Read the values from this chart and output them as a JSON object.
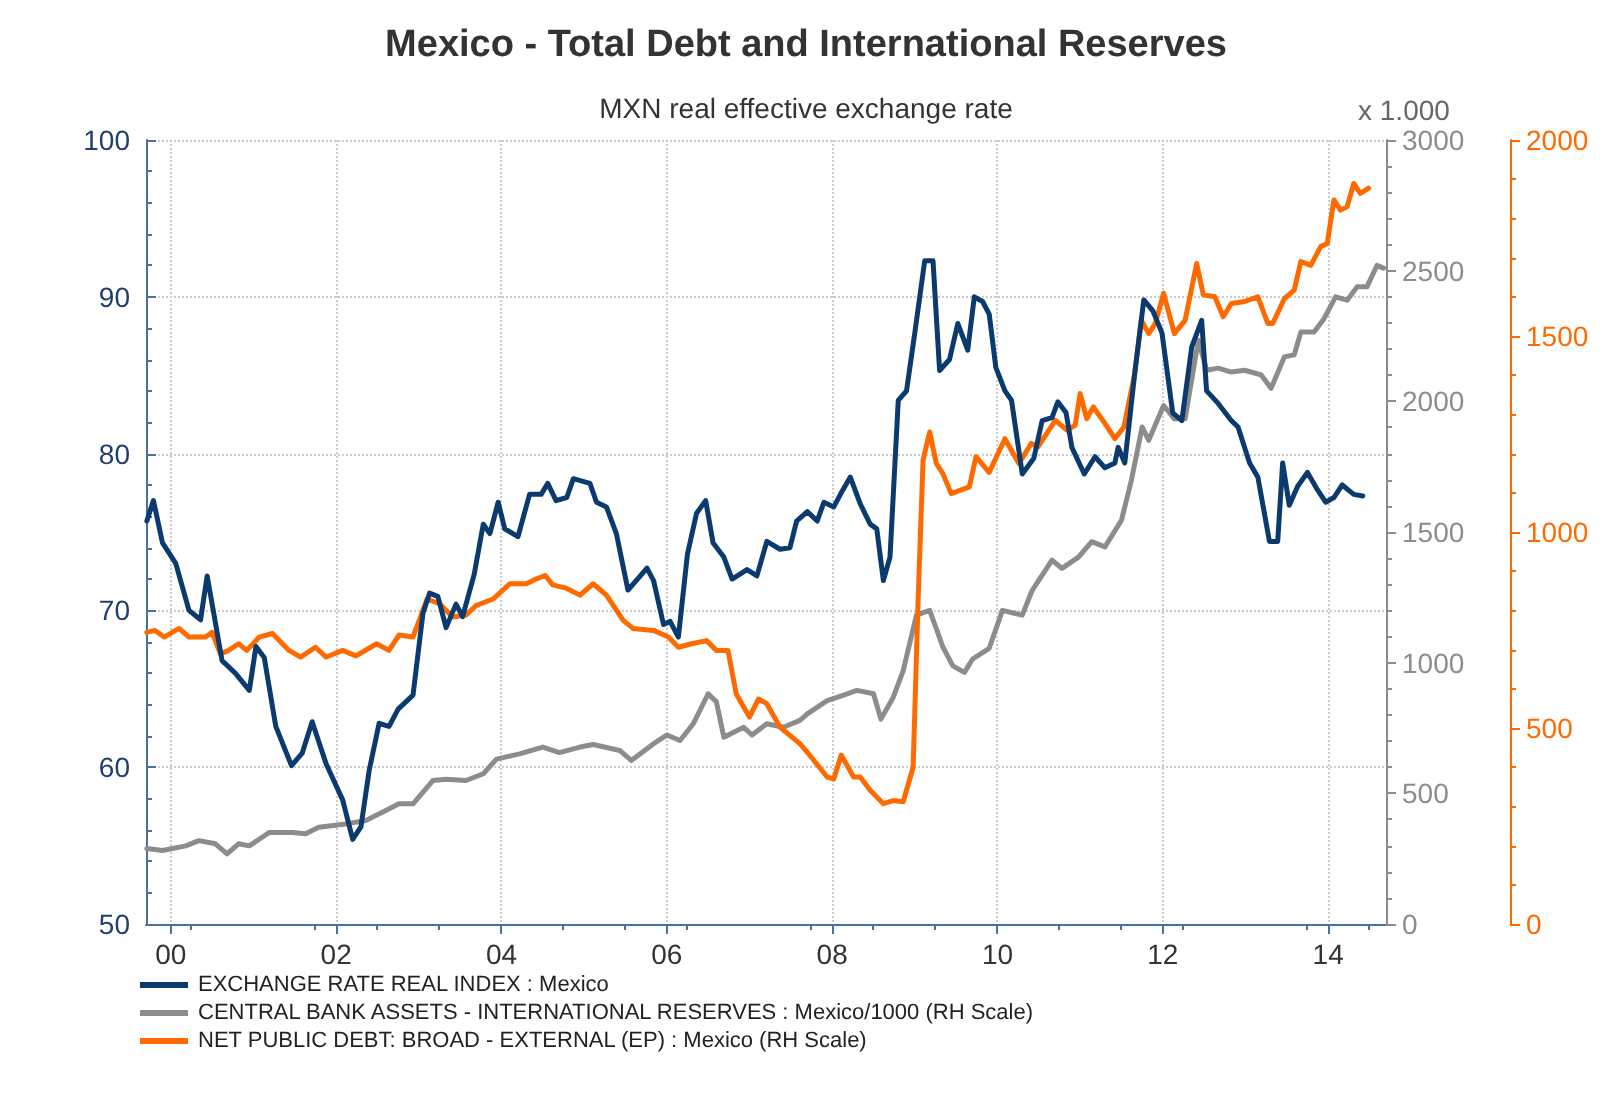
{
  "chart_data": {
    "type": "line",
    "title": "Mexico - Total Debt and International Reserves",
    "subtitle": "MXN real effective exchange rate",
    "y2label": "x 1.000",
    "xlim": [
      1999.7,
      2014.7
    ],
    "xticks": [
      {
        "value": 2000,
        "label": "00"
      },
      {
        "value": 2002,
        "label": "02"
      },
      {
        "value": 2004,
        "label": "04"
      },
      {
        "value": 2006,
        "label": "06"
      },
      {
        "value": 2008,
        "label": "08"
      },
      {
        "value": 2010,
        "label": "10"
      },
      {
        "value": 2012,
        "label": "12"
      },
      {
        "value": 2014,
        "label": "14"
      }
    ],
    "ylim": [
      50,
      100
    ],
    "yticks": [
      50,
      60,
      70,
      80,
      90,
      100
    ],
    "y2lim": [
      0,
      3000
    ],
    "y2ticks": [
      0,
      500,
      1000,
      1500,
      2000,
      2500,
      3000
    ],
    "y3lim": [
      0,
      2000
    ],
    "y3ticks": [
      0,
      500,
      1000,
      1500,
      2000
    ],
    "grid": true,
    "legend": "bottom",
    "marker": "none",
    "line_style": "solid",
    "series": [
      {
        "name": "EXCHANGE RATE REAL INDEX : Mexico",
        "color": "#0b3a6e",
        "axis": "y",
        "x": [
          1999.71,
          1999.79,
          1999.9,
          2000.06,
          2000.22,
          2000.36,
          2000.44,
          2000.62,
          2000.78,
          2000.95,
          2001.03,
          2001.13,
          2001.27,
          2001.46,
          2001.59,
          2001.71,
          2001.88,
          2002.08,
          2002.2,
          2002.3,
          2002.4,
          2002.52,
          2002.64,
          2002.75,
          2002.93,
          2003.05,
          2003.13,
          2003.23,
          2003.33,
          2003.45,
          2003.53,
          2003.67,
          2003.78,
          2003.86,
          2003.96,
          2004.04,
          2004.2,
          2004.34,
          2004.48,
          2004.56,
          2004.66,
          2004.79,
          2004.87,
          2005.07,
          2005.15,
          2005.27,
          2005.39,
          2005.53,
          2005.63,
          2005.76,
          2005.84,
          2005.96,
          2006.04,
          2006.14,
          2006.25,
          2006.36,
          2006.47,
          2006.56,
          2006.69,
          2006.79,
          2006.97,
          2007.09,
          2007.21,
          2007.37,
          2007.49,
          2007.57,
          2007.7,
          2007.82,
          2007.9,
          2008.02,
          2008.1,
          2008.22,
          2008.34,
          2008.46,
          2008.54,
          2008.62,
          2008.7,
          2008.8,
          2008.9,
          2009.0,
          2009.12,
          2009.22,
          2009.3,
          2009.42,
          2009.52,
          2009.64,
          2009.72,
          2009.82,
          2009.9,
          2009.98,
          2010.09,
          2010.17,
          2010.3,
          2010.44,
          2010.54,
          2010.66,
          2010.73,
          2010.83,
          2010.9,
          2011.05,
          2011.18,
          2011.3,
          2011.42,
          2011.46,
          2011.54,
          2011.66,
          2011.77,
          2011.88,
          2011.99,
          2012.12,
          2012.23,
          2012.35,
          2012.47,
          2012.53,
          2012.67,
          2012.83,
          2012.91,
          2013.05,
          2013.15,
          2013.29,
          2013.39,
          2013.45,
          2013.53,
          2013.63,
          2013.75,
          2013.87,
          2013.97,
          2014.07,
          2014.17,
          2014.31,
          2014.42
        ],
        "values": [
          75.7,
          77.0,
          74.3,
          73.0,
          70.0,
          69.4,
          72.2,
          66.8,
          66.0,
          64.9,
          67.7,
          67.0,
          62.6,
          60.1,
          60.9,
          62.9,
          60.2,
          57.9,
          55.4,
          56.2,
          59.8,
          62.8,
          62.6,
          63.7,
          64.6,
          69.8,
          71.1,
          70.9,
          68.9,
          70.4,
          69.6,
          72.3,
          75.5,
          74.9,
          76.9,
          75.2,
          74.7,
          77.4,
          77.4,
          78.1,
          77.0,
          77.2,
          78.4,
          78.1,
          76.9,
          76.6,
          74.9,
          71.3,
          71.9,
          72.7,
          71.9,
          69.1,
          69.3,
          68.3,
          73.6,
          76.2,
          77.0,
          74.3,
          73.4,
          72.0,
          72.6,
          72.2,
          74.4,
          73.9,
          74.0,
          75.7,
          76.3,
          75.7,
          76.9,
          76.6,
          77.4,
          78.5,
          76.8,
          75.5,
          75.2,
          71.9,
          73.4,
          83.4,
          84.0,
          87.7,
          92.3,
          92.3,
          85.3,
          86.0,
          88.3,
          86.6,
          90.0,
          89.7,
          88.9,
          85.5,
          84.0,
          83.4,
          78.7,
          79.7,
          82.1,
          82.3,
          83.3,
          82.6,
          80.4,
          78.7,
          79.8,
          79.1,
          79.4,
          80.4,
          79.4,
          85.1,
          89.8,
          89.1,
          87.7,
          82.6,
          82.1,
          86.8,
          88.5,
          84.0,
          83.2,
          82.1,
          81.7,
          79.4,
          78.5,
          74.4,
          74.4,
          79.4,
          76.7,
          77.9,
          78.8,
          77.7,
          76.9,
          77.2,
          78.0,
          77.4,
          77.3
        ]
      },
      {
        "name": "CENTRAL BANK ASSETS - INTERNATIONAL RESERVES : Mexico/1000 (RH Scale)",
        "color": "#8c8c8c",
        "axis": "y2",
        "x": [
          1999.71,
          1999.9,
          2000.18,
          2000.34,
          2000.54,
          2000.68,
          2000.82,
          2000.95,
          2001.19,
          2001.47,
          2001.63,
          2001.79,
          2002.12,
          2002.36,
          2002.6,
          2002.76,
          2002.93,
          2003.17,
          2003.33,
          2003.57,
          2003.78,
          2003.94,
          2004.22,
          2004.5,
          2004.7,
          2004.95,
          2005.11,
          2005.43,
          2005.57,
          2005.84,
          2006.0,
          2006.16,
          2006.32,
          2006.5,
          2006.6,
          2006.69,
          2006.93,
          2007.03,
          2007.21,
          2007.41,
          2007.61,
          2007.7,
          2007.94,
          2008.14,
          2008.3,
          2008.5,
          2008.59,
          2008.74,
          2008.86,
          2009.02,
          2009.18,
          2009.34,
          2009.46,
          2009.6,
          2009.7,
          2009.9,
          2010.06,
          2010.3,
          2010.42,
          2010.66,
          2010.78,
          2010.98,
          2011.14,
          2011.3,
          2011.5,
          2011.62,
          2011.75,
          2011.83,
          2012.01,
          2012.14,
          2012.27,
          2012.43,
          2012.53,
          2012.67,
          2012.83,
          2012.99,
          2013.19,
          2013.31,
          2013.47,
          2013.59,
          2013.67,
          2013.83,
          2013.95,
          2014.09,
          2014.23,
          2014.35,
          2014.47,
          2014.59,
          2014.67
        ],
        "values": [
          289,
          281,
          299,
          319,
          307,
          268,
          307,
          299,
          350,
          350,
          345,
          370,
          383,
          396,
          434,
          460,
          460,
          549,
          554,
          549,
          575,
          631,
          651,
          677,
          656,
          677,
          687,
          664,
          626,
          690,
          723,
          702,
          766,
          881,
          850,
          715,
          753,
          723,
          766,
          753,
          779,
          804,
          855,
          876,
          894,
          881,
          784,
          868,
          970,
          1182,
          1200,
          1060,
          988,
          963,
          1014,
          1055,
          1200,
          1182,
          1277,
          1392,
          1361,
          1404,
          1463,
          1443,
          1545,
          1698,
          1902,
          1851,
          1984,
          1933,
          1933,
          2234,
          2119,
          2127,
          2112,
          2119,
          2101,
          2050,
          2170,
          2178,
          2265,
          2265,
          2316,
          2400,
          2387,
          2438,
          2438,
          2520,
          2510
        ]
      },
      {
        "name": "NET PUBLIC DEBT: BROAD - EXTERNAL (EP) : Mexico (RH Scale)",
        "color": "#ff6a00",
        "axis": "y3",
        "x": [
          1999.71,
          1999.81,
          1999.92,
          2000.1,
          2000.22,
          2000.42,
          2000.5,
          2000.6,
          2000.7,
          2000.82,
          2000.92,
          2001.07,
          2001.23,
          2001.43,
          2001.57,
          2001.75,
          2001.88,
          2002.08,
          2002.24,
          2002.49,
          2002.64,
          2002.76,
          2002.93,
          2003.1,
          2003.25,
          2003.41,
          2003.57,
          2003.69,
          2003.9,
          2004.1,
          2004.3,
          2004.42,
          2004.53,
          2004.62,
          2004.79,
          2004.95,
          2005.11,
          2005.27,
          2005.47,
          2005.59,
          2005.84,
          2006.02,
          2006.14,
          2006.3,
          2006.48,
          2006.6,
          2006.74,
          2006.84,
          2007.0,
          2007.11,
          2007.21,
          2007.37,
          2007.61,
          2007.7,
          2007.94,
          2008.02,
          2008.11,
          2008.26,
          2008.34,
          2008.46,
          2008.62,
          2008.74,
          2008.86,
          2008.98,
          2009.04,
          2009.1,
          2009.18,
          2009.26,
          2009.34,
          2009.44,
          2009.66,
          2009.74,
          2009.9,
          2010.09,
          2010.26,
          2010.41,
          2010.49,
          2010.7,
          2010.84,
          2010.94,
          2011.0,
          2011.08,
          2011.16,
          2011.3,
          2011.42,
          2011.53,
          2011.66,
          2011.74,
          2011.83,
          2011.91,
          2012.01,
          2012.14,
          2012.27,
          2012.41,
          2012.49,
          2012.63,
          2012.73,
          2012.83,
          2012.99,
          2013.15,
          2013.27,
          2013.33,
          2013.47,
          2013.59,
          2013.67,
          2013.79,
          2013.91,
          2013.99,
          2014.07,
          2014.15,
          2014.23,
          2014.31,
          2014.39,
          2014.49
        ],
        "values": [
          744,
          749,
          732,
          754,
          732,
          732,
          744,
          689,
          698,
          715,
          698,
          732,
          741,
          698,
          681,
          706,
          681,
          698,
          684,
          715,
          698,
          737,
          732,
          829,
          817,
          783,
          788,
          812,
          829,
          868,
          868,
          880,
          889,
          865,
          856,
          839,
          868,
          839,
          775,
          754,
          749,
          732,
          706,
          715,
          723,
          698,
          698,
          587,
          528,
          574,
          562,
          502,
          460,
          438,
          375,
          370,
          431,
          375,
          375,
          341,
          307,
          315,
          312,
          400,
          826,
          1183,
          1255,
          1175,
          1149,
          1098,
          1115,
          1192,
          1152,
          1238,
          1175,
          1226,
          1217,
          1285,
          1260,
          1272,
          1353,
          1289,
          1319,
          1277,
          1238,
          1268,
          1404,
          1540,
          1506,
          1532,
          1609,
          1506,
          1540,
          1685,
          1605,
          1600,
          1549,
          1583,
          1588,
          1600,
          1532,
          1532,
          1595,
          1617,
          1690,
          1680,
          1728,
          1736,
          1847,
          1821,
          1830,
          1889,
          1864,
          1877
        ]
      }
    ]
  }
}
